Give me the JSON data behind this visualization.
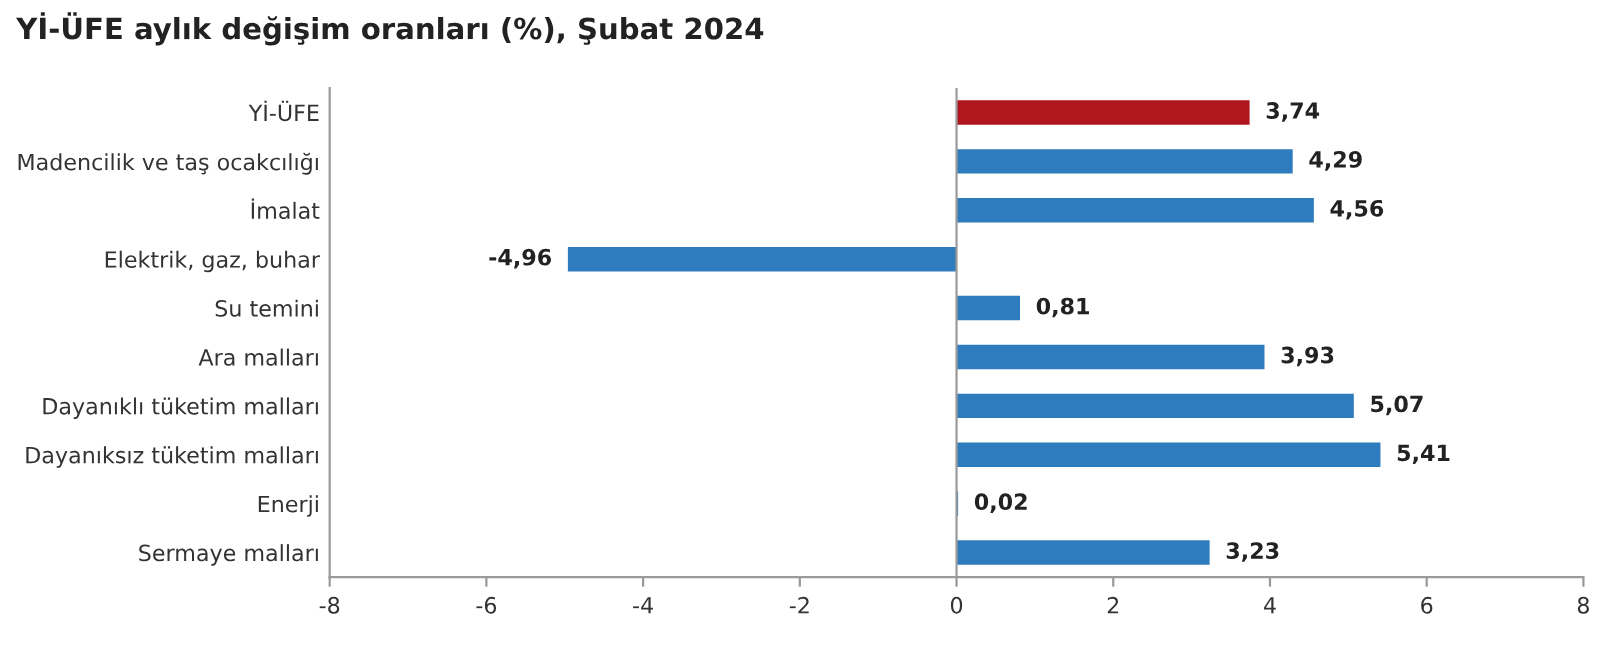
{
  "chart_data": {
    "type": "bar",
    "orientation": "horizontal",
    "title": "Yİ-ÜFE aylık değişim oranları (%), Şubat 2024",
    "categories": [
      "Yİ-ÜFE",
      "Madencilik ve taş ocakcılığı",
      "İmalat",
      "Elektrik, gaz, buhar",
      "Su temini",
      "Ara malları",
      "Dayanıklı tüketim malları",
      "Dayanıksız tüketim malları",
      "Enerji",
      "Sermaye malları"
    ],
    "values": [
      3.74,
      4.29,
      4.56,
      -4.96,
      0.81,
      3.93,
      5.07,
      5.41,
      0.02,
      3.23
    ],
    "colors": [
      "#b0161e",
      "#2e7bbe",
      "#2e7bbe",
      "#2e7bbe",
      "#2e7bbe",
      "#2e7bbe",
      "#2e7bbe",
      "#2e7bbe",
      "#2e7bbe",
      "#2e7bbe"
    ],
    "value_labels": [
      "3,74",
      "4,29",
      "4,56",
      "-4,96",
      "0,81",
      "3,93",
      "5,07",
      "5,41",
      "0,02",
      "3,23"
    ],
    "xlim": [
      -8,
      8
    ],
    "xticks": [
      -8,
      -6,
      -4,
      -2,
      0,
      2,
      4,
      6,
      8
    ],
    "ref_lines": [
      {
        "axis": "x",
        "value": 0,
        "color": "#9a9a9a"
      }
    ],
    "grid": false,
    "legend": false
  }
}
